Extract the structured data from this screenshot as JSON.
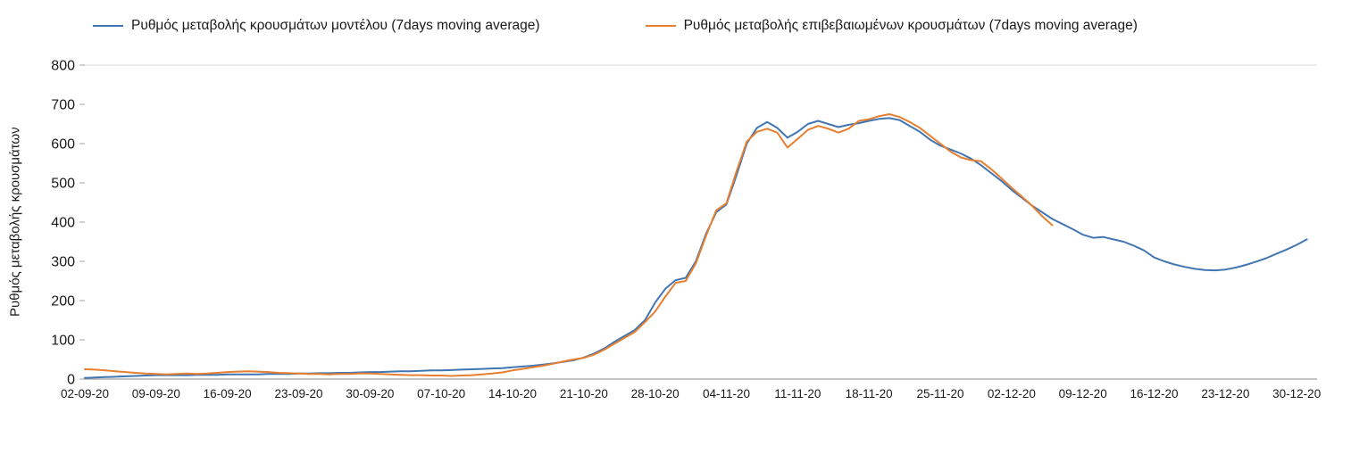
{
  "chart_data": {
    "type": "line",
    "title": "",
    "xlabel": "",
    "ylabel": "Ρυθμός μεταβολής κρουσμάτων",
    "ylim": [
      0,
      800
    ],
    "x_domain": [
      0,
      121
    ],
    "grid": false,
    "legend_position": "top",
    "y_ticks": [
      0,
      100,
      200,
      300,
      400,
      500,
      600,
      700,
      800
    ],
    "x_ticks": [
      {
        "day": 0,
        "label": "02-09-20"
      },
      {
        "day": 7,
        "label": "09-09-20"
      },
      {
        "day": 14,
        "label": "16-09-20"
      },
      {
        "day": 21,
        "label": "23-09-20"
      },
      {
        "day": 28,
        "label": "30-09-20"
      },
      {
        "day": 35,
        "label": "07-10-20"
      },
      {
        "day": 42,
        "label": "14-10-20"
      },
      {
        "day": 49,
        "label": "21-10-20"
      },
      {
        "day": 56,
        "label": "28-10-20"
      },
      {
        "day": 63,
        "label": "04-11-20"
      },
      {
        "day": 70,
        "label": "11-11-20"
      },
      {
        "day": 77,
        "label": "18-11-20"
      },
      {
        "day": 84,
        "label": "25-11-20"
      },
      {
        "day": 91,
        "label": "02-12-20"
      },
      {
        "day": 98,
        "label": "09-12-20"
      },
      {
        "day": 105,
        "label": "16-12-20"
      },
      {
        "day": 112,
        "label": "23-12-20"
      },
      {
        "day": 119,
        "label": "30-12-20"
      }
    ],
    "x_unit": "days since 02-09-20 (daily points)",
    "series": [
      {
        "key": "model",
        "name": "Ρυθμός μεταβολής κρουσμάτων μοντέλου (7days moving average)",
        "color": "#4276b2",
        "start_day": 0,
        "values": [
          3,
          4,
          5,
          6,
          7,
          8,
          9,
          10,
          10,
          10,
          10,
          11,
          11,
          11,
          12,
          12,
          12,
          12,
          13,
          13,
          13,
          14,
          14,
          15,
          15,
          16,
          16,
          17,
          18,
          18,
          19,
          20,
          20,
          21,
          22,
          22,
          23,
          24,
          25,
          26,
          27,
          28,
          30,
          32,
          34,
          37,
          40,
          44,
          48,
          55,
          65,
          78,
          95,
          110,
          125,
          150,
          195,
          230,
          252,
          258,
          300,
          370,
          425,
          445,
          520,
          600,
          640,
          655,
          640,
          615,
          630,
          650,
          658,
          650,
          642,
          648,
          652,
          658,
          663,
          665,
          660,
          645,
          630,
          610,
          595,
          585,
          575,
          562,
          545,
          525,
          505,
          482,
          462,
          442,
          425,
          408,
          395,
          382,
          368,
          360,
          362,
          356,
          350,
          340,
          328,
          310,
          300,
          292,
          286,
          281,
          278,
          277,
          279,
          284,
          291,
          299,
          308,
          319,
          330,
          342,
          356
        ]
      },
      {
        "key": "confirmed",
        "name": "Ρυθμός μεταβολής επιβεβαιωμένων κρουσμάτων (7days moving average)",
        "color": "#e67f30",
        "start_day": 0,
        "values": [
          25,
          24,
          22,
          20,
          18,
          16,
          14,
          13,
          12,
          13,
          14,
          13,
          14,
          16,
          18,
          19,
          20,
          19,
          18,
          16,
          15,
          14,
          13,
          13,
          12,
          13,
          13,
          14,
          14,
          13,
          12,
          11,
          10,
          10,
          9,
          9,
          8,
          9,
          10,
          12,
          14,
          17,
          22,
          26,
          30,
          34,
          39,
          45,
          50,
          54,
          62,
          75,
          90,
          105,
          120,
          145,
          172,
          210,
          245,
          250,
          295,
          365,
          430,
          448,
          530,
          605,
          630,
          638,
          628,
          590,
          612,
          635,
          645,
          638,
          628,
          638,
          658,
          662,
          670,
          675,
          668,
          655,
          640,
          620,
          600,
          580,
          565,
          558,
          555,
          535,
          512,
          488,
          465,
          442,
          415,
          392
        ]
      }
    ]
  }
}
